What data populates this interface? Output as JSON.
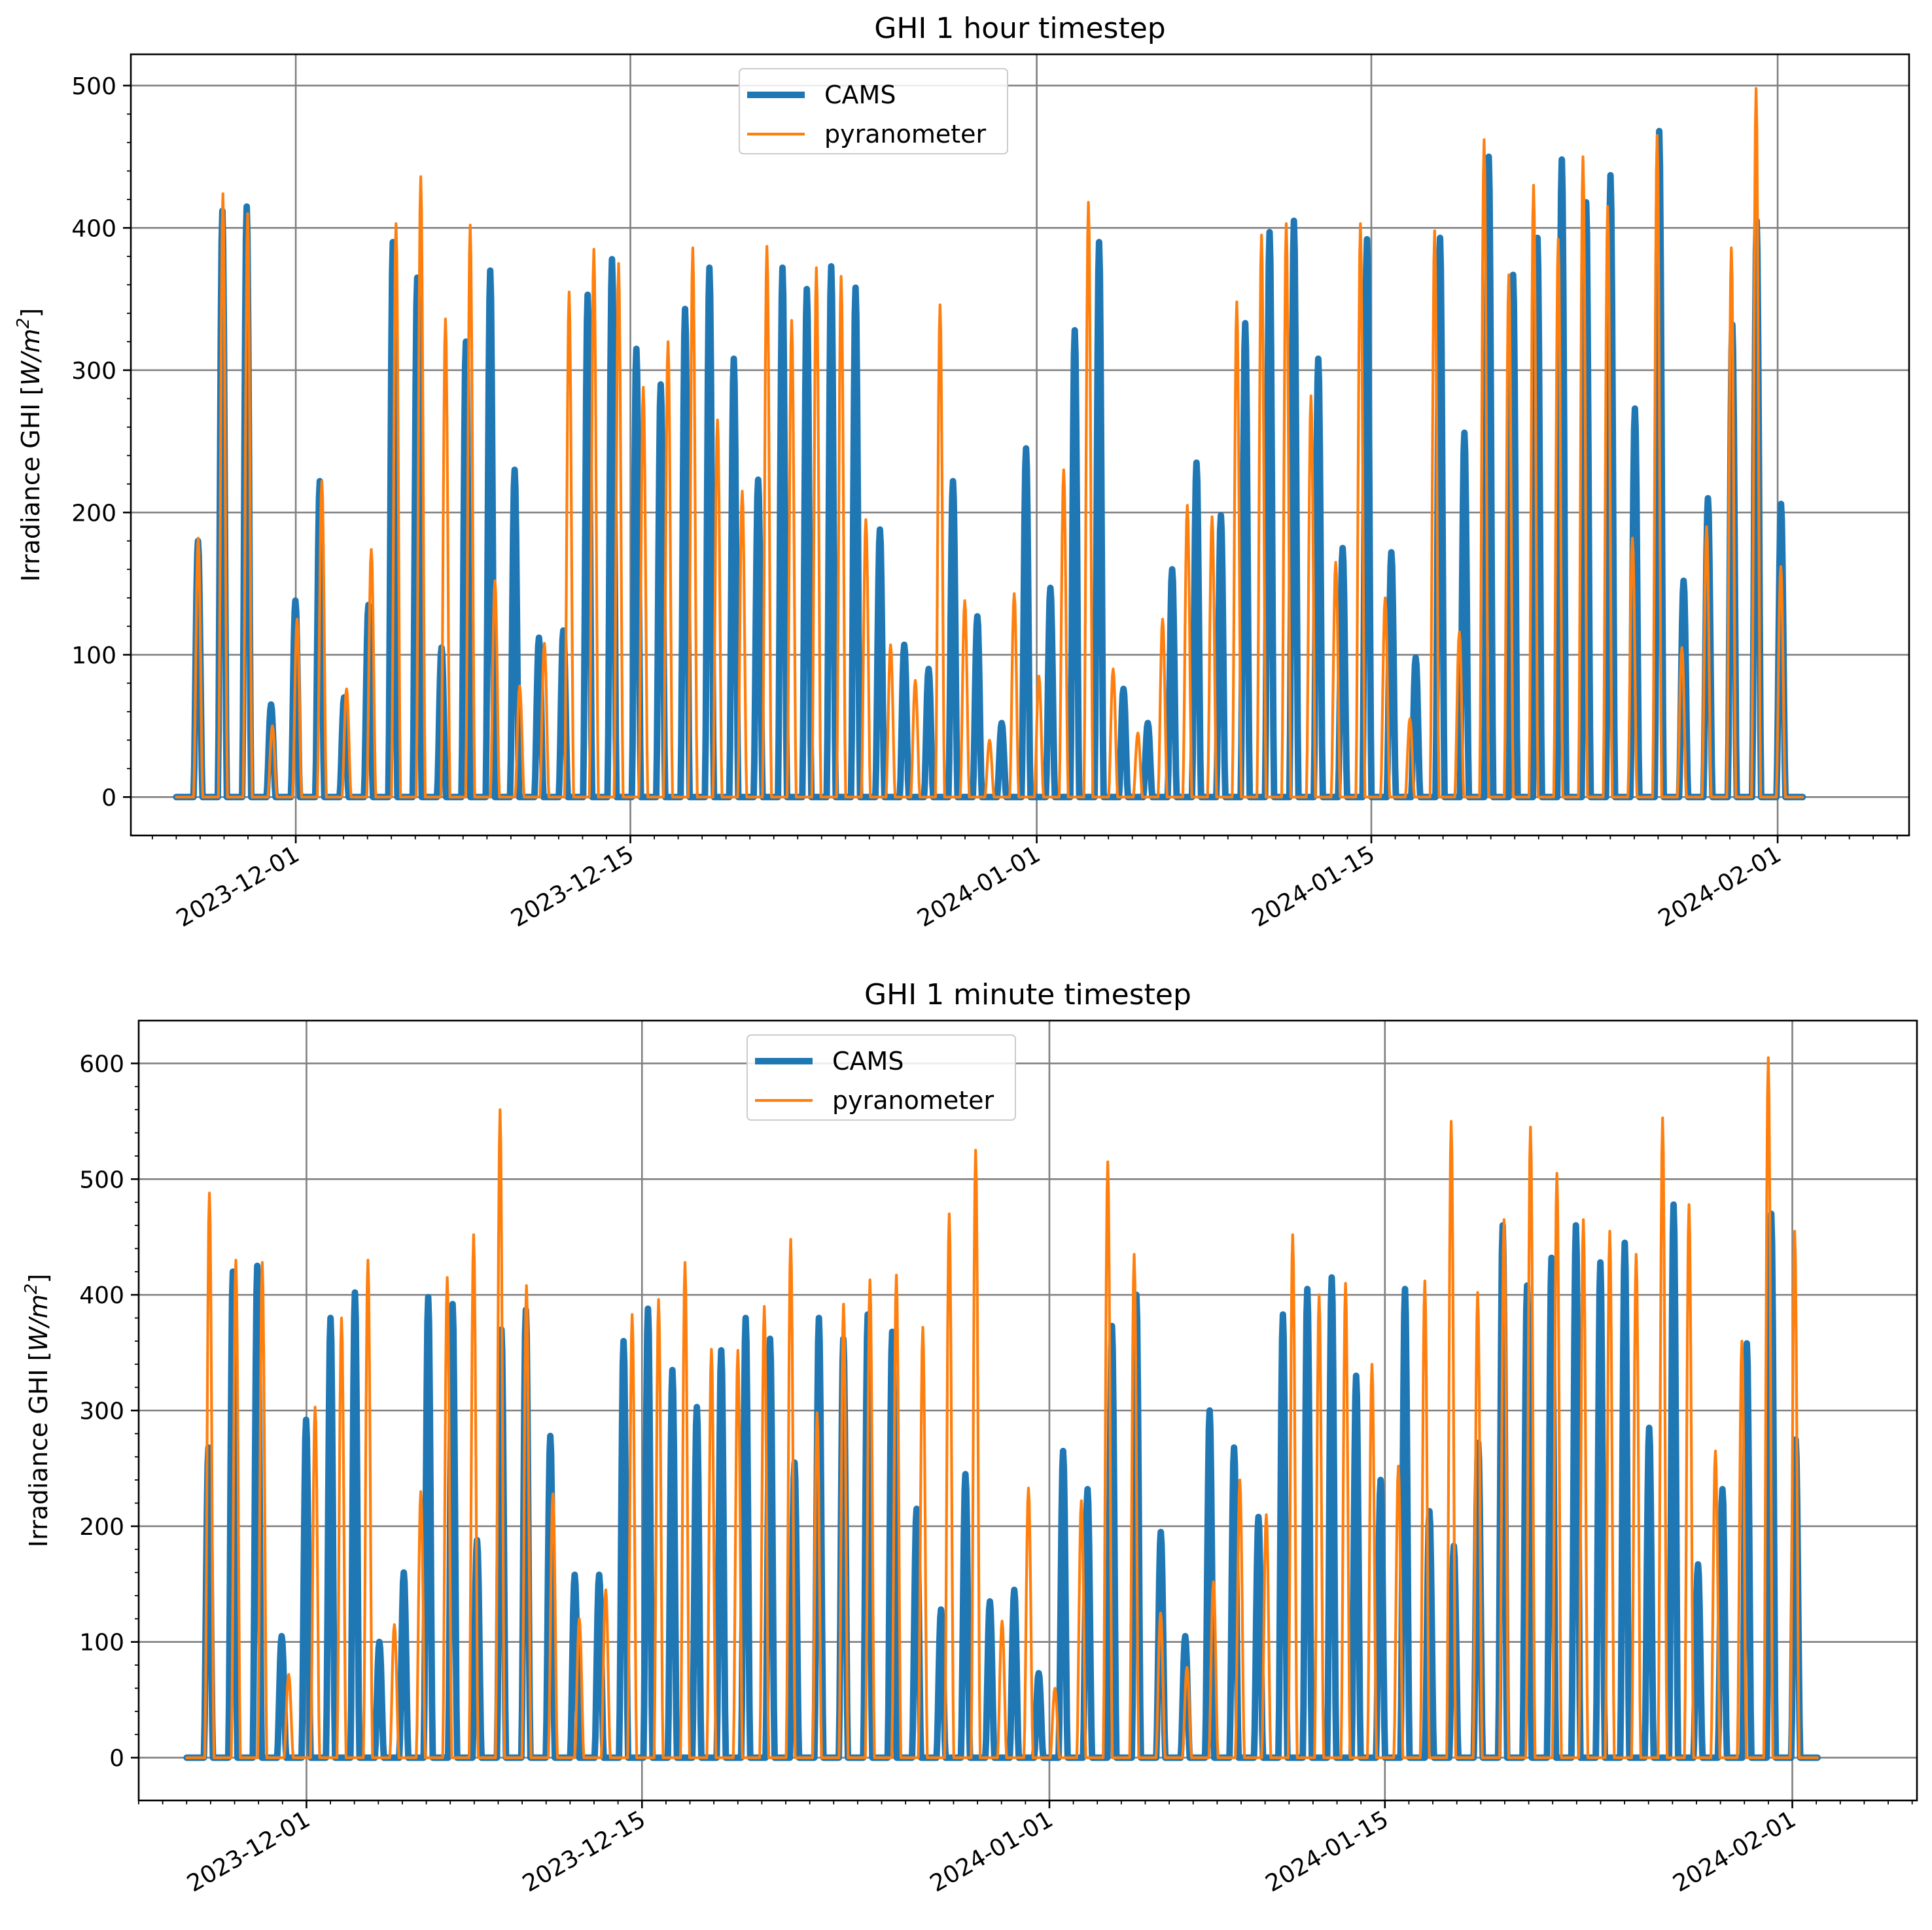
{
  "figure": {
    "background": "#ffffff",
    "colors": {
      "CAMS": "#1f77b4",
      "pyranometer": "#ff7f0e",
      "grid": "#808080",
      "axes": "#000000"
    }
  },
  "chart_data": [
    {
      "type": "line",
      "title": "GHI 1 hour timestep",
      "xlabel": "",
      "ylabel": "Irradiance GHI [W/m²]",
      "ylabel_parts": {
        "main": "Irradiance GHI [",
        "italic": "W/m",
        "sup": "2",
        "end": "]"
      },
      "ylim": [
        -27,
        522
      ],
      "yticks": [
        0,
        100,
        200,
        300,
        400,
        500
      ],
      "xlim_days": [
        -6.9,
        67.5
      ],
      "xticks": [
        {
          "day": 0,
          "label": "2023-12-01"
        },
        {
          "day": 14,
          "label": "2023-12-15"
        },
        {
          "day": 31,
          "label": "2024-01-01"
        },
        {
          "day": 45,
          "label": "2024-01-15"
        },
        {
          "day": 62,
          "label": "2024-02-01"
        }
      ],
      "grid": true,
      "legend": {
        "position": "top-center",
        "entries": [
          "CAMS",
          "pyranometer"
        ]
      },
      "series": [
        {
          "name": "CAMS",
          "color": "#1f77b4",
          "daily_peaks": [
            180,
            412,
            415,
            65,
            138,
            222,
            70,
            135,
            390,
            365,
            105,
            320,
            370,
            230,
            112,
            117,
            353,
            378,
            315,
            290,
            343,
            372,
            308,
            223,
            372,
            357,
            373,
            358,
            188,
            107,
            90,
            222,
            127,
            52,
            245,
            147,
            328,
            390,
            76,
            52,
            160,
            235,
            198,
            333,
            397,
            405,
            308,
            175,
            392,
            172,
            98,
            393,
            256,
            450,
            367,
            393,
            448,
            418,
            437,
            273,
            468,
            152,
            210,
            332,
            405,
            206
          ]
        },
        {
          "name": "pyranometer",
          "color": "#ff7f0e",
          "daily_peaks": [
            182,
            424,
            410,
            50,
            125,
            222,
            76,
            174,
            403,
            436,
            336,
            402,
            152,
            78,
            108,
            355,
            385,
            375,
            288,
            320,
            386,
            265,
            215,
            387,
            335,
            372,
            366,
            195,
            107,
            82,
            346,
            138,
            40,
            143,
            85,
            230,
            418,
            90,
            45,
            125,
            205,
            197,
            348,
            395,
            403,
            282,
            165,
            403,
            140,
            55,
            398,
            116,
            462,
            367,
            430,
            392,
            450,
            415,
            182,
            465,
            105,
            190,
            386,
            498,
            162
          ]
        }
      ]
    },
    {
      "type": "line",
      "title": "GHI 1 minute timestep",
      "xlabel": "",
      "ylabel": "Irradiance GHI [W/m²]",
      "ylabel_parts": {
        "main": "Irradiance GHI [",
        "italic": "W/m",
        "sup": "2",
        "end": "]"
      },
      "ylim": [
        -37,
        637
      ],
      "yticks": [
        0,
        100,
        200,
        300,
        400,
        500,
        600
      ],
      "xlim_days": [
        -7.0,
        67.2
      ],
      "xticks": [
        {
          "day": 0,
          "label": "2023-12-01"
        },
        {
          "day": 14,
          "label": "2023-12-15"
        },
        {
          "day": 31,
          "label": "2024-01-01"
        },
        {
          "day": 45,
          "label": "2024-01-15"
        },
        {
          "day": 62,
          "label": "2024-02-01"
        }
      ],
      "grid": true,
      "legend": {
        "position": "top-center",
        "entries": [
          "CAMS",
          "pyranometer"
        ]
      },
      "series": [
        {
          "name": "CAMS",
          "color": "#1f77b4",
          "daily_peaks": [
            268,
            420,
            425,
            105,
            292,
            380,
            402,
            100,
            160,
            398,
            392,
            188,
            370,
            387,
            278,
            158,
            158,
            360,
            388,
            335,
            303,
            352,
            380,
            362,
            255,
            380,
            362,
            383,
            368,
            215,
            128,
            245,
            135,
            145,
            73,
            265,
            232,
            373,
            400,
            195,
            105,
            300,
            268,
            208,
            383,
            405,
            415,
            330,
            240,
            405,
            213,
            183,
            272,
            460,
            408,
            432,
            460,
            428,
            445,
            285,
            478,
            167,
            232,
            358,
            470,
            275
          ]
        },
        {
          "name": "pyranometer",
          "color": "#ff7f0e",
          "daily_peaks": [
            488,
            430,
            428,
            72,
            303,
            380,
            430,
            115,
            230,
            415,
            452,
            560,
            408,
            228,
            120,
            145,
            383,
            396,
            428,
            353,
            352,
            390,
            448,
            298,
            392,
            413,
            417,
            372,
            470,
            525,
            118,
            233,
            60,
            222,
            515,
            435,
            125,
            78,
            152,
            240,
            210,
            452,
            400,
            410,
            340,
            252,
            412,
            550,
            402,
            465,
            545,
            505,
            465,
            455,
            435,
            553,
            478,
            265,
            360,
            605,
            455
          ]
        }
      ]
    }
  ]
}
